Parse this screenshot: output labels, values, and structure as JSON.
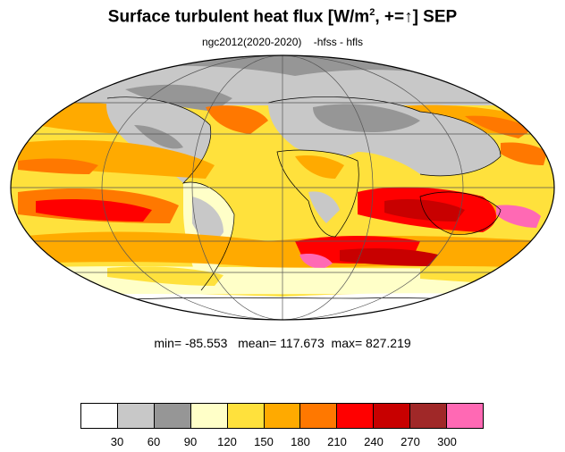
{
  "title": {
    "main": "Surface turbulent heat flux [W/m",
    "superscript": "2",
    "suffix": ", +=↑]  SEP"
  },
  "subtitle": "ngc2012(2020-2020)    -hfss - hfls",
  "stats": "min= -85.553   mean= 117.673  max= 827.219",
  "colorbar": {
    "colors": [
      "#ffffff",
      "#c8c8c8",
      "#969696",
      "#ffffc8",
      "#ffe13c",
      "#ffaa00",
      "#ff7800",
      "#ff0000",
      "#c80000",
      "#a02828",
      "#ff69b4"
    ],
    "labels": [
      "30",
      "60",
      "90",
      "120",
      "150",
      "180",
      "210",
      "240",
      "270",
      "300"
    ]
  }
}
